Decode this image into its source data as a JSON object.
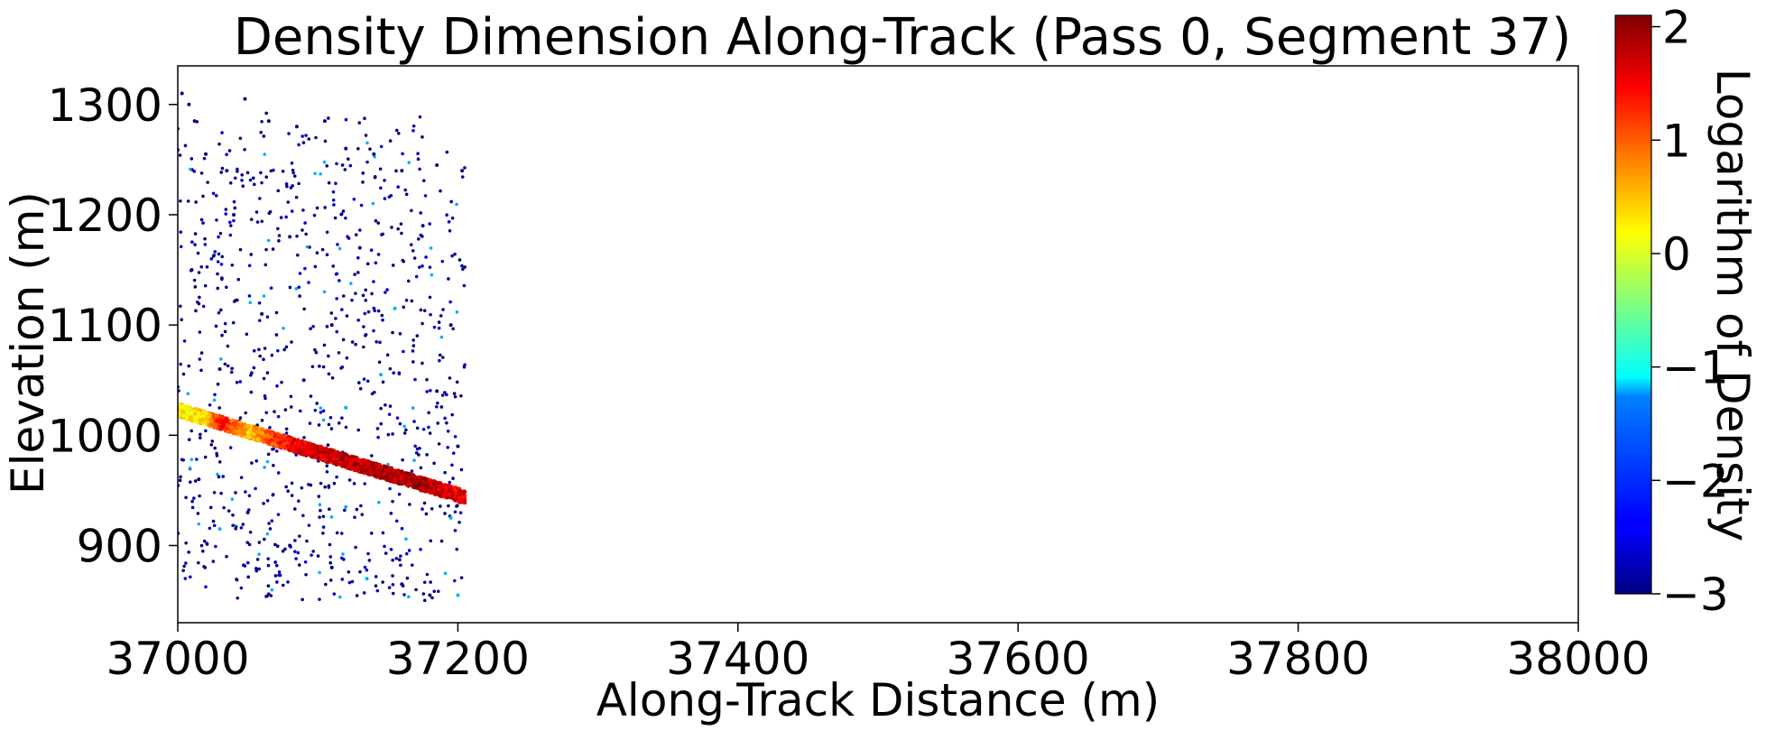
{
  "chart_data": {
    "type": "scatter",
    "title": "Density Dimension Along-Track (Pass 0, Segment 37)",
    "xlabel": "Along-Track Distance (m)",
    "ylabel": "Elevation (m)",
    "xlim": [
      37000,
      38000
    ],
    "ylim": [
      830,
      1335
    ],
    "x_ticks": [
      37000,
      37200,
      37400,
      37600,
      37800,
      38000
    ],
    "x_tick_labels": [
      "37000",
      "37200",
      "37400",
      "37600",
      "37800",
      "38000"
    ],
    "y_ticks": [
      900,
      1000,
      1100,
      1200,
      1300
    ],
    "y_tick_labels": [
      "900",
      "1000",
      "1100",
      "1200",
      "1300"
    ],
    "colorbar": {
      "label": "Logarithm of Density",
      "colormap": "jet",
      "range": [
        -3,
        2.1
      ],
      "ticks": [
        -3,
        -2,
        -1,
        0,
        1,
        2
      ],
      "tick_labels": [
        "−3",
        "−2",
        "−1",
        "0",
        "1",
        "2"
      ]
    },
    "grid": false,
    "series": [
      {
        "points_sample": [
          [
            37003,
            1310,
            -3
          ],
          [
            37008,
            1300,
            -3
          ],
          [
            37012,
            1285,
            -3
          ],
          [
            37020,
            1255,
            -3
          ],
          [
            37035,
            1240,
            -3
          ],
          [
            37048,
            1305,
            -3
          ],
          [
            37065,
            1285,
            -3
          ],
          [
            37085,
            1280,
            -3
          ],
          [
            37105,
            1285,
            -3
          ],
          [
            37120,
            1260,
            -3
          ],
          [
            37140,
            1255,
            -3
          ],
          [
            37160,
            1240,
            -3
          ],
          [
            37185,
            1245,
            -3
          ],
          [
            37203,
            1240,
            -3
          ],
          [
            37040,
            1200,
            -3
          ],
          [
            37080,
            1180,
            -3
          ],
          [
            37130,
            1170,
            -3
          ],
          [
            37175,
            1190,
            -3
          ],
          [
            37010,
            1150,
            -3
          ],
          [
            37060,
            1110,
            -3
          ],
          [
            37110,
            1100,
            -3
          ],
          [
            37155,
            1115,
            -1.5
          ],
          [
            37195,
            1100,
            -3
          ],
          [
            37030,
            1060,
            -3
          ],
          [
            37090,
            1050,
            -3
          ],
          [
            37120,
            1025,
            -1.5
          ],
          [
            37145,
            1055,
            -1.5
          ],
          [
            37185,
            1040,
            -3
          ],
          [
            37015,
            960,
            -3
          ],
          [
            37050,
            930,
            -3
          ],
          [
            37080,
            900,
            -3
          ],
          [
            37110,
            880,
            -3
          ],
          [
            37135,
            870,
            -1.5
          ],
          [
            37160,
            865,
            -3
          ],
          [
            37180,
            855,
            -3
          ],
          [
            37200,
            855,
            -1.5
          ],
          [
            37030,
            915,
            -1.5
          ],
          [
            37195,
            925,
            -1.5
          ],
          [
            37120,
            935,
            -1.5
          ],
          [
            37200,
            990,
            -3
          ]
        ],
        "band": {
          "x_start": 37000,
          "y_start": 1023,
          "x_end": 37205,
          "y_end": 944,
          "values": [
            [
              37000,
              0.3
            ],
            [
              37020,
              0.3
            ],
            [
              37030,
              1.5
            ],
            [
              37050,
              0.5
            ],
            [
              37080,
              1.5
            ],
            [
              37120,
              1.8
            ],
            [
              37170,
              1.9
            ],
            [
              37205,
              1.5
            ]
          ]
        }
      }
    ]
  }
}
